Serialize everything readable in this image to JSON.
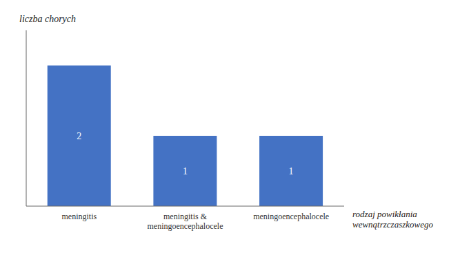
{
  "chart_data": {
    "type": "bar",
    "categories": [
      "meningitis",
      "meningitis &\nmeningoencephalocele",
      "meningoencephalocele"
    ],
    "values": [
      2,
      1,
      1
    ],
    "color": "#4472C4",
    "ylabel": "liczba chorych",
    "xlabel": "rodzaj powikłania\nwewnątrzczaszkowego",
    "ylim": [
      0,
      2.5
    ],
    "data_labels": true,
    "tick_labels": "x"
  }
}
